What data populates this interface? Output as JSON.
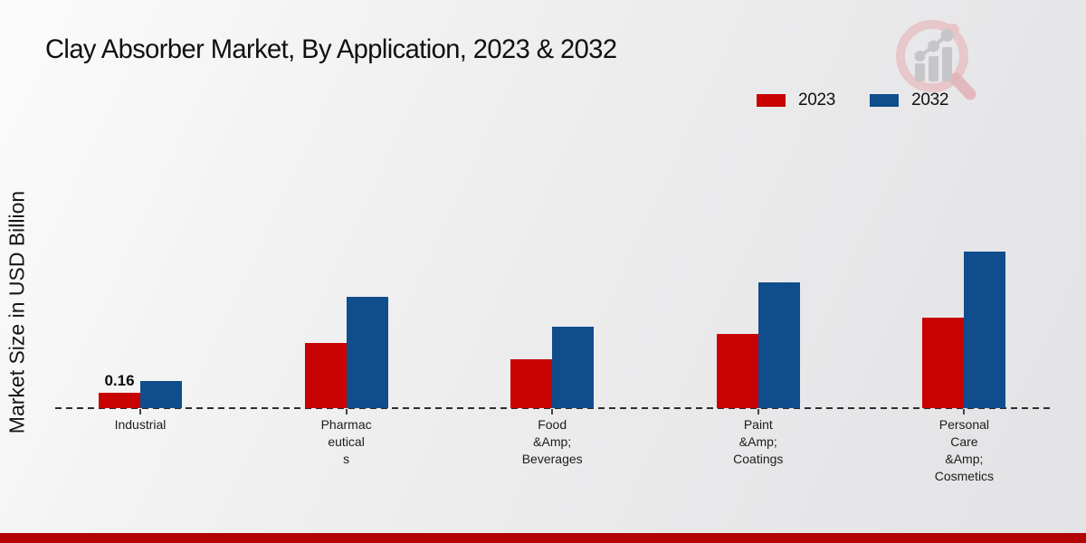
{
  "page": {
    "title": "Clay Absorber Market, By Application, 2023 & 2032"
  },
  "ylabel": "Market Size in USD Billion",
  "legend": [
    {
      "label": "2023",
      "color": "#c80202"
    },
    {
      "label": "2032",
      "color": "#0f4d8c"
    }
  ],
  "colors": {
    "series_2023": "#c80202",
    "series_2032": "#0f4d8c",
    "footer_band": "#b30303",
    "logo_pink": "#e7c3c5",
    "logo_gray": "#c6c6ca"
  },
  "chart_data": {
    "type": "bar",
    "title": "Clay Absorber Market, By Application, 2023 & 2032",
    "xlabel": "",
    "ylabel": "Market Size in USD Billion",
    "categories": [
      "Industrial",
      "Pharmaceuticals",
      "Food &Amp; Beverages",
      "Paint &Amp; Coatings",
      "Personal Care &Amp; Cosmetics"
    ],
    "category_lines": [
      [
        "Industrial"
      ],
      [
        "Pharmac",
        "eutical",
        "s"
      ],
      [
        "Food",
        "&Amp;",
        "Beverages"
      ],
      [
        "Paint",
        "&Amp;",
        "Coatings"
      ],
      [
        "Personal",
        "Care",
        "&Amp;",
        "Cosmetics"
      ]
    ],
    "series": [
      {
        "name": "2023",
        "color": "#c80202",
        "values": [
          0.16,
          0.68,
          0.51,
          0.77,
          0.94
        ]
      },
      {
        "name": "2032",
        "color": "#0f4d8c",
        "values": [
          0.28,
          1.16,
          0.85,
          1.31,
          1.63
        ]
      }
    ],
    "bar_value_labels": [
      {
        "series": "2023",
        "category_index": 0,
        "text": "0.16"
      }
    ],
    "ylim": [
      0,
      1.8
    ],
    "grid": "off",
    "baseline_style": "dashed",
    "legend_position": "top-right",
    "unit": "USD Billion"
  }
}
